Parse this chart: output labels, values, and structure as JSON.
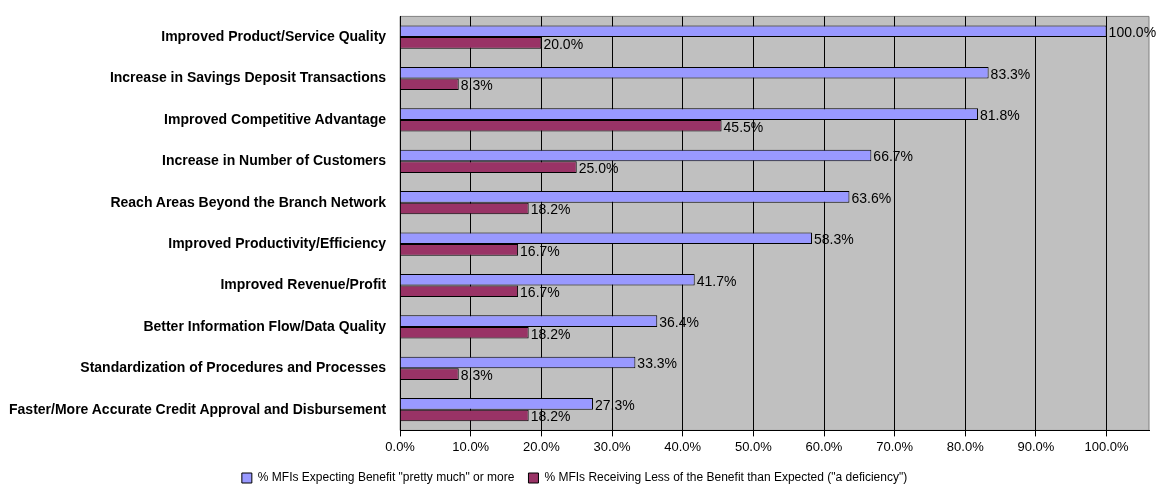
{
  "chart_data": {
    "type": "bar",
    "orientation": "horizontal",
    "legend": "bottom",
    "grid": "x",
    "categories": [
      "Improved Product/Service Quality",
      "Increase in Savings Deposit Transactions",
      "Improved Competitive Advantage",
      "Increase in Number of Customers",
      "Reach Areas Beyond the Branch Network",
      "Improved Productivity/Efficiency",
      "Improved Revenue/Profit",
      "Better Information Flow/Data Quality",
      "Standardization of Procedures and Processes",
      "Faster/More Accurate Credit Approval and Disbursement"
    ],
    "series": [
      {
        "name": "% MFIs Expecting Benefit \"pretty much\" or more",
        "color": "#9999ff",
        "values": [
          100.0,
          83.3,
          81.8,
          66.7,
          63.6,
          58.3,
          41.7,
          36.4,
          33.3,
          27.3
        ],
        "value_labels": [
          "100.0%",
          "83.3%",
          "81.8%",
          "66.7%",
          "63.6%",
          "58.3%",
          "41.7%",
          "36.4%",
          "33.3%",
          "27.3%"
        ]
      },
      {
        "name": "% MFIs Receiving Less of the Benefit than Expected (\"a deficiency\")",
        "color": "#993366",
        "values": [
          20.0,
          8.3,
          45.5,
          25.0,
          18.2,
          16.7,
          16.7,
          18.2,
          8.3,
          18.2
        ],
        "value_labels": [
          "20.0%",
          "8.3%",
          "45.5%",
          "25.0%",
          "18.2%",
          "16.7%",
          "16.7%",
          "18.2%",
          "8.3%",
          "18.2%"
        ]
      }
    ],
    "xlim": [
      0,
      106
    ],
    "xticks": [
      {
        "value": 0,
        "label": "0.0%"
      },
      {
        "value": 10,
        "label": "10.0%"
      },
      {
        "value": 20,
        "label": "20.0%"
      },
      {
        "value": 30,
        "label": "30.0%"
      },
      {
        "value": 40,
        "label": "40.0%"
      },
      {
        "value": 50,
        "label": "50.0%"
      },
      {
        "value": 60,
        "label": "60.0%"
      },
      {
        "value": 70,
        "label": "70.0%"
      },
      {
        "value": 80,
        "label": "80.0%"
      },
      {
        "value": 90,
        "label": "90.0%"
      },
      {
        "value": 100,
        "label": "100.0%"
      }
    ]
  }
}
